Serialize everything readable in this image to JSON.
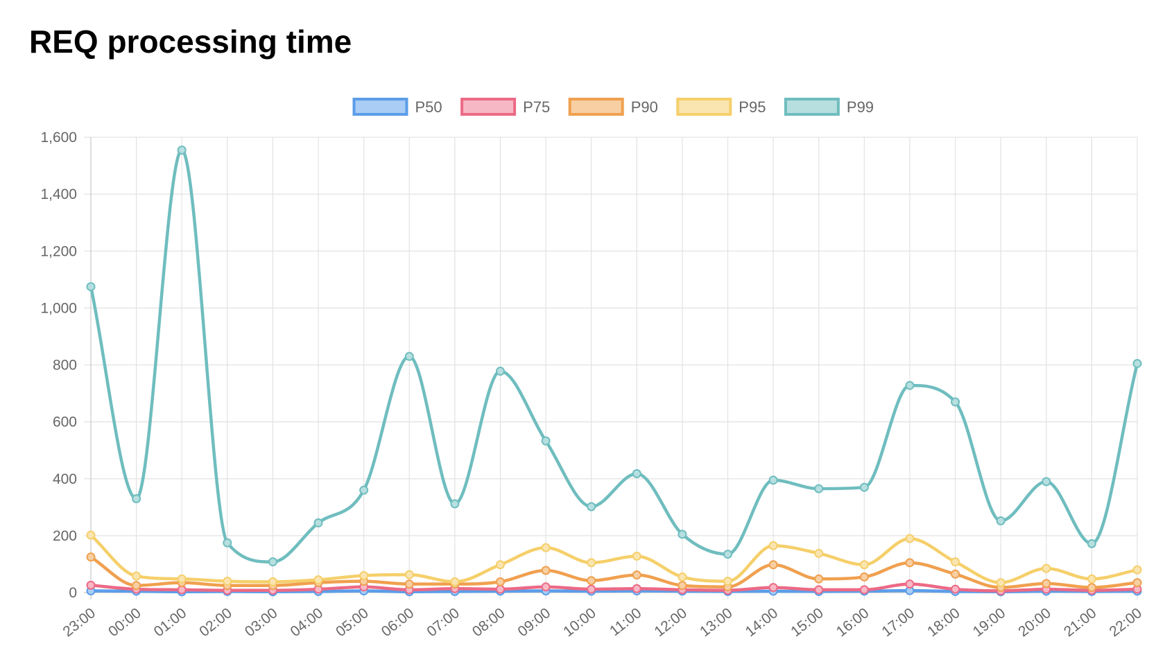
{
  "page": {
    "title": "REQ processing time"
  },
  "chart_data": {
    "type": "line",
    "title": "REQ processing time",
    "xlabel": "",
    "ylabel": "",
    "categories": [
      "23:00",
      "00:00",
      "01:00",
      "02:00",
      "03:00",
      "04:00",
      "05:00",
      "06:00",
      "07:00",
      "08:00",
      "09:00",
      "10:00",
      "11:00",
      "12:00",
      "13:00",
      "14:00",
      "15:00",
      "16:00",
      "17:00",
      "18:00",
      "19:00",
      "20:00",
      "21:00",
      "22:00"
    ],
    "ylim": [
      0,
      1600
    ],
    "yticks": [
      0,
      200,
      400,
      600,
      800,
      1000,
      1200,
      1400,
      1600
    ],
    "ytick_labels": [
      "0",
      "200",
      "400",
      "600",
      "800",
      "1,000",
      "1,200",
      "1,400",
      "1,600"
    ],
    "grid": true,
    "legend_position": "top",
    "series": [
      {
        "name": "P50",
        "color": "#5b9de9",
        "fill": "#a9cdf5",
        "values": [
          6,
          5,
          3,
          4,
          3,
          4,
          6,
          3,
          4,
          5,
          6,
          5,
          6,
          5,
          4,
          5,
          4,
          5,
          7,
          4,
          3,
          5,
          4,
          5
        ]
      },
      {
        "name": "P75",
        "color": "#ec6a86",
        "fill": "#f7b8c5",
        "values": [
          26,
          12,
          10,
          8,
          8,
          12,
          20,
          10,
          14,
          12,
          20,
          12,
          14,
          10,
          8,
          18,
          10,
          10,
          30,
          12,
          6,
          12,
          8,
          12
        ]
      },
      {
        "name": "P90",
        "color": "#f0a04f",
        "fill": "#f7cfa3",
        "values": [
          125,
          25,
          35,
          25,
          25,
          35,
          40,
          30,
          30,
          38,
          78,
          42,
          62,
          25,
          20,
          98,
          48,
          55,
          105,
          65,
          18,
          32,
          18,
          35
        ]
      },
      {
        "name": "P95",
        "color": "#f5cf6a",
        "fill": "#fae5b0",
        "values": [
          202,
          58,
          48,
          40,
          38,
          45,
          60,
          63,
          38,
          98,
          158,
          105,
          128,
          55,
          40,
          165,
          138,
          98,
          190,
          108,
          35,
          85,
          48,
          80
        ]
      },
      {
        "name": "P99",
        "color": "#6fbdbf",
        "fill": "#b7dfe0",
        "values": [
          1075,
          330,
          1555,
          175,
          108,
          245,
          360,
          830,
          312,
          778,
          533,
          302,
          418,
          205,
          135,
          395,
          365,
          370,
          728,
          670,
          252,
          390,
          172,
          805
        ]
      }
    ]
  }
}
